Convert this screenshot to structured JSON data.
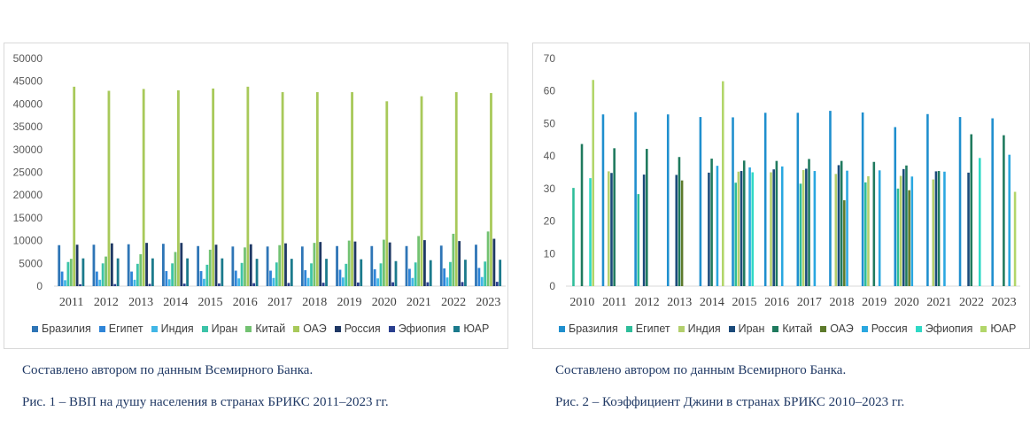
{
  "captions": {
    "source1": "Составлено автором по данным Всемирного Банка.",
    "figure1": "Рис. 1 – ВВП на душу населения в странах БРИКС 2011–2023 гг.",
    "source2": "Составлено автором по данным Всемирного Банка.",
    "figure2": "Рис. 2 – Коэффициент Джини в странах БРИКС 2010–2023 гг."
  },
  "chart_data": [
    {
      "type": "bar",
      "title": "",
      "xlabel": "",
      "ylabel": "",
      "ylim": [
        0,
        50000
      ],
      "yticks": [
        0,
        5000,
        10000,
        15000,
        20000,
        25000,
        30000,
        35000,
        40000,
        45000,
        50000
      ],
      "grid": false,
      "legend_position": "bottom",
      "categories": [
        "2011",
        "2012",
        "2013",
        "2014",
        "2015",
        "2016",
        "2017",
        "2018",
        "2019",
        "2020",
        "2021",
        "2022",
        "2023"
      ],
      "series": [
        {
          "name": "Бразилия",
          "color": "#2e75b6",
          "values": [
            9000,
            9100,
            9200,
            9300,
            8800,
            8700,
            8700,
            8700,
            8800,
            8800,
            8800,
            8900,
            9100
          ]
        },
        {
          "name": "Египет",
          "color": "#2f85d8",
          "values": [
            3200,
            3200,
            3200,
            3300,
            3300,
            3400,
            3400,
            3500,
            3600,
            3700,
            3800,
            3900,
            4000
          ]
        },
        {
          "name": "Индия",
          "color": "#41b6e6",
          "values": [
            1300,
            1400,
            1400,
            1500,
            1600,
            1700,
            1800,
            1800,
            1900,
            1700,
            1800,
            1900,
            2000
          ]
        },
        {
          "name": "Иран",
          "color": "#3cc3a8",
          "values": [
            5300,
            5000,
            4900,
            5000,
            4700,
            5100,
            5200,
            5000,
            4900,
            5000,
            5200,
            5300,
            5400
          ]
        },
        {
          "name": "Китай",
          "color": "#73c272",
          "values": [
            6000,
            6500,
            7000,
            7500,
            8000,
            8500,
            9000,
            9500,
            10000,
            10200,
            11000,
            11500,
            12000
          ]
        },
        {
          "name": "ОАЭ",
          "color": "#a8c95a",
          "values": [
            43800,
            42900,
            43300,
            43000,
            43400,
            43800,
            42600,
            42600,
            42600,
            40600,
            41700,
            42600,
            42400
          ]
        },
        {
          "name": "Россия",
          "color": "#1f3864",
          "values": [
            9100,
            9400,
            9500,
            9500,
            9100,
            9200,
            9400,
            9700,
            9800,
            9600,
            10100,
            9900,
            10400
          ]
        },
        {
          "name": "Эфиопия",
          "color": "#2a3f8f",
          "values": [
            400,
            450,
            500,
            550,
            600,
            650,
            700,
            750,
            800,
            850,
            850,
            900,
            950
          ]
        },
        {
          "name": "ЮАР",
          "color": "#1b7a8c",
          "values": [
            6100,
            6100,
            6100,
            6100,
            6100,
            6000,
            6000,
            6000,
            5900,
            5500,
            5700,
            5800,
            5800
          ]
        }
      ]
    },
    {
      "type": "bar",
      "title": "",
      "xlabel": "",
      "ylabel": "",
      "ylim": [
        0,
        70
      ],
      "yticks": [
        0,
        10,
        20,
        30,
        40,
        50,
        60,
        70
      ],
      "grid": false,
      "legend_position": "bottom",
      "categories": [
        "2010",
        "2011",
        "2012",
        "2013",
        "2014",
        "2015",
        "2016",
        "2017",
        "2018",
        "2019",
        "2020",
        "2021",
        "2022",
        "2023"
      ],
      "series": [
        {
          "name": "Бразилия",
          "color": "#1f8fce",
          "values": [
            null,
            52.8,
            53.5,
            52.8,
            52.0,
            51.9,
            53.3,
            53.3,
            53.9,
            53.4,
            48.9,
            52.9,
            52.0,
            51.6
          ]
        },
        {
          "name": "Египет",
          "color": "#2ebd9a",
          "values": [
            30.2,
            null,
            28.3,
            null,
            null,
            31.8,
            null,
            31.5,
            null,
            31.9,
            30.0,
            null,
            null,
            null
          ]
        },
        {
          "name": "Индия",
          "color": "#b3cf6d",
          "values": [
            null,
            35.3,
            null,
            null,
            null,
            35.2,
            35.0,
            35.7,
            34.5,
            33.8,
            33.9,
            32.8,
            null,
            null
          ]
        },
        {
          "name": "Иран",
          "color": "#1b4a7a",
          "values": [
            null,
            34.8,
            34.3,
            34.2,
            34.9,
            35.4,
            35.9,
            36.1,
            37.2,
            null,
            36.0,
            35.3,
            34.9,
            null
          ]
        },
        {
          "name": "Китай",
          "color": "#1f7a5e",
          "values": [
            43.7,
            42.4,
            42.2,
            39.7,
            39.2,
            38.6,
            38.5,
            39.1,
            38.5,
            38.2,
            37.1,
            35.4,
            46.7,
            46.4
          ]
        },
        {
          "name": "ОАЭ",
          "color": "#5d7a2b",
          "values": [
            null,
            null,
            null,
            32.5,
            null,
            null,
            null,
            null,
            26.4,
            null,
            29.5,
            null,
            null,
            null
          ]
        },
        {
          "name": "Россия",
          "color": "#2aa7e0",
          "values": [
            null,
            null,
            null,
            null,
            37.0,
            36.5,
            36.8,
            35.4,
            35.5,
            35.6,
            33.7,
            35.2,
            null,
            40.4
          ]
        },
        {
          "name": "Эфиопия",
          "color": "#2fd9c6",
          "values": [
            33.2,
            null,
            null,
            null,
            null,
            35.0,
            null,
            null,
            null,
            null,
            null,
            null,
            39.4,
            null
          ]
        },
        {
          "name": "ЮАР",
          "color": "#b2d66a",
          "values": [
            63.4,
            null,
            null,
            null,
            63.0,
            null,
            null,
            null,
            null,
            null,
            null,
            null,
            null,
            29.0
          ]
        }
      ]
    }
  ]
}
